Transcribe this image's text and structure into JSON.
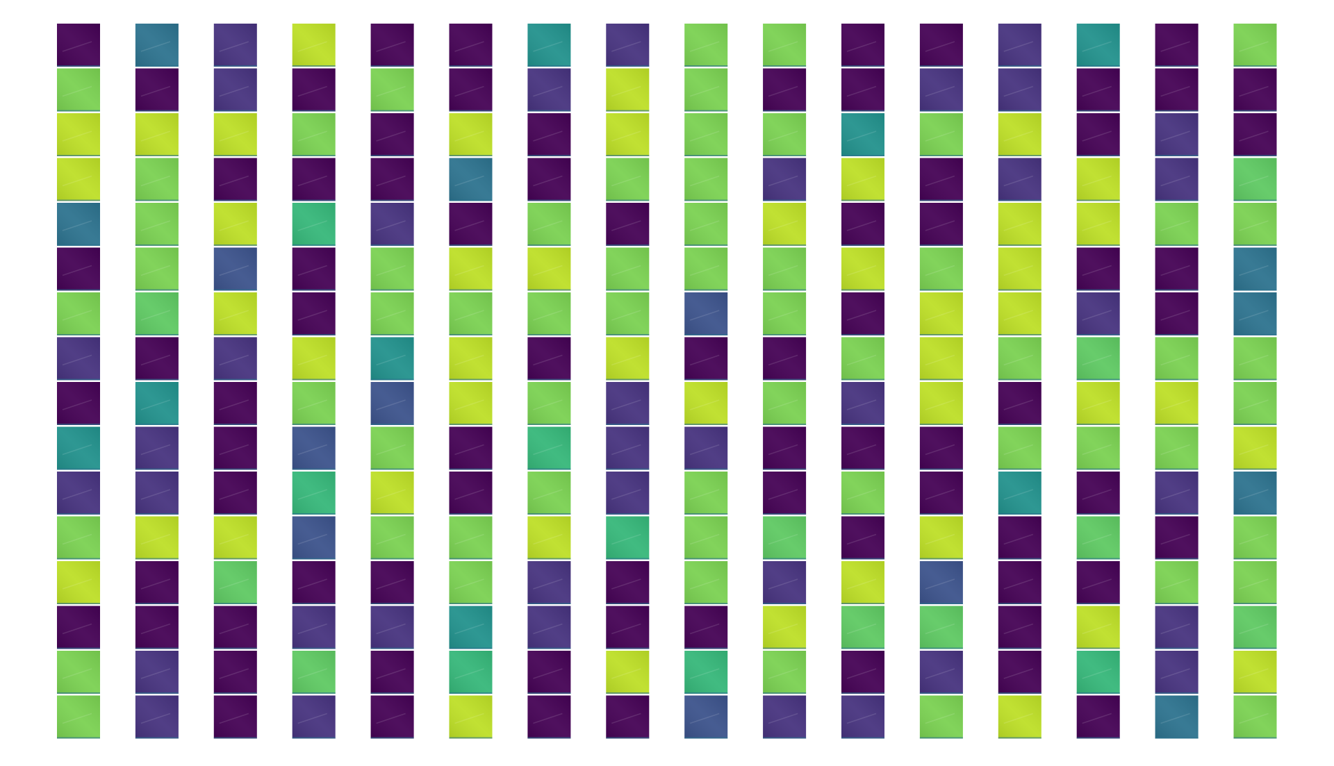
{
  "feature_maps": {
    "rows": [
      [
        "#440154",
        "#2c728e",
        "#46327e",
        "#bddf26",
        "#440154",
        "#440154",
        "#21918c",
        "#46327e",
        "#7ad151",
        "#7ad151",
        "#440154",
        "#440154",
        "#46327e",
        "#21918c",
        "#440154",
        "#7ad151"
      ],
      [
        "#7ad151",
        "#440154",
        "#46327e",
        "#440154",
        "#7ad151",
        "#440154",
        "#46327e",
        "#bddf26",
        "#7ad151",
        "#440154",
        "#440154",
        "#46327e",
        "#46327e",
        "#440154",
        "#440154",
        "#440154"
      ],
      [
        "#bddf26",
        "#bddf26",
        "#bddf26",
        "#7ad151",
        "#440154",
        "#bddf26",
        "#440154",
        "#bddf26",
        "#7ad151",
        "#7ad151",
        "#21918c",
        "#7ad151",
        "#bddf26",
        "#440154",
        "#46327e",
        "#440154"
      ],
      [
        "#bddf26",
        "#7ad151",
        "#440154",
        "#440154",
        "#440154",
        "#2c728e",
        "#440154",
        "#7ad151",
        "#7ad151",
        "#46327e",
        "#bddf26",
        "#440154",
        "#46327e",
        "#bddf26",
        "#46327e",
        "#5ec962"
      ],
      [
        "#2c728e",
        "#7ad151",
        "#bddf26",
        "#35b779",
        "#46327e",
        "#440154",
        "#7ad151",
        "#440154",
        "#7ad151",
        "#bddf26",
        "#440154",
        "#440154",
        "#bddf26",
        "#bddf26",
        "#7ad151",
        "#7ad151"
      ],
      [
        "#440154",
        "#7ad151",
        "#3b528b",
        "#440154",
        "#7ad151",
        "#bddf26",
        "#bddf26",
        "#7ad151",
        "#7ad151",
        "#7ad151",
        "#bddf26",
        "#7ad151",
        "#bddf26",
        "#440154",
        "#440154",
        "#2c728e"
      ],
      [
        "#7ad151",
        "#5ec962",
        "#bddf26",
        "#440154",
        "#7ad151",
        "#7ad151",
        "#7ad151",
        "#7ad151",
        "#3b528b",
        "#7ad151",
        "#440154",
        "#bddf26",
        "#bddf26",
        "#46327e",
        "#440154",
        "#2c728e"
      ],
      [
        "#46327e",
        "#440154",
        "#46327e",
        "#bddf26",
        "#21918c",
        "#bddf26",
        "#440154",
        "#bddf26",
        "#440154",
        "#440154",
        "#7ad151",
        "#bddf26",
        "#7ad151",
        "#5ec962",
        "#7ad151",
        "#7ad151"
      ],
      [
        "#440154",
        "#21918c",
        "#440154",
        "#7ad151",
        "#3b528b",
        "#bddf26",
        "#7ad151",
        "#46327e",
        "#bddf26",
        "#7ad151",
        "#46327e",
        "#bddf26",
        "#440154",
        "#bddf26",
        "#bddf26",
        "#7ad151"
      ],
      [
        "#21918c",
        "#46327e",
        "#440154",
        "#3b528b",
        "#7ad151",
        "#440154",
        "#35b779",
        "#46327e",
        "#46327e",
        "#440154",
        "#440154",
        "#440154",
        "#7ad151",
        "#7ad151",
        "#7ad151",
        "#bddf26"
      ],
      [
        "#46327e",
        "#46327e",
        "#440154",
        "#35b779",
        "#bddf26",
        "#440154",
        "#7ad151",
        "#46327e",
        "#7ad151",
        "#440154",
        "#7ad151",
        "#440154",
        "#21918c",
        "#440154",
        "#46327e",
        "#2c728e"
      ],
      [
        "#7ad151",
        "#bddf26",
        "#bddf26",
        "#3b528b",
        "#7ad151",
        "#7ad151",
        "#bddf26",
        "#35b779",
        "#7ad151",
        "#5ec962",
        "#440154",
        "#bddf26",
        "#440154",
        "#5ec962",
        "#440154",
        "#7ad151"
      ],
      [
        "#bddf26",
        "#440154",
        "#5ec962",
        "#440154",
        "#440154",
        "#7ad151",
        "#46327e",
        "#440154",
        "#7ad151",
        "#46327e",
        "#bddf26",
        "#3b528b",
        "#440154",
        "#440154",
        "#7ad151",
        "#7ad151"
      ],
      [
        "#440154",
        "#440154",
        "#440154",
        "#46327e",
        "#46327e",
        "#21918c",
        "#46327e",
        "#440154",
        "#440154",
        "#bddf26",
        "#5ec962",
        "#5ec962",
        "#440154",
        "#bddf26",
        "#46327e",
        "#5ec962"
      ],
      [
        "#7ad151",
        "#46327e",
        "#440154",
        "#5ec962",
        "#440154",
        "#35b779",
        "#440154",
        "#bddf26",
        "#35b779",
        "#7ad151",
        "#440154",
        "#46327e",
        "#440154",
        "#35b779",
        "#46327e",
        "#bddf26"
      ],
      [
        "#7ad151",
        "#46327e",
        "#440154",
        "#46327e",
        "#440154",
        "#bddf26",
        "#440154",
        "#440154",
        "#3b528b",
        "#46327e",
        "#46327e",
        "#7ad151",
        "#bddf26",
        "#440154",
        "#2c728e",
        "#7ad151"
      ]
    ]
  }
}
